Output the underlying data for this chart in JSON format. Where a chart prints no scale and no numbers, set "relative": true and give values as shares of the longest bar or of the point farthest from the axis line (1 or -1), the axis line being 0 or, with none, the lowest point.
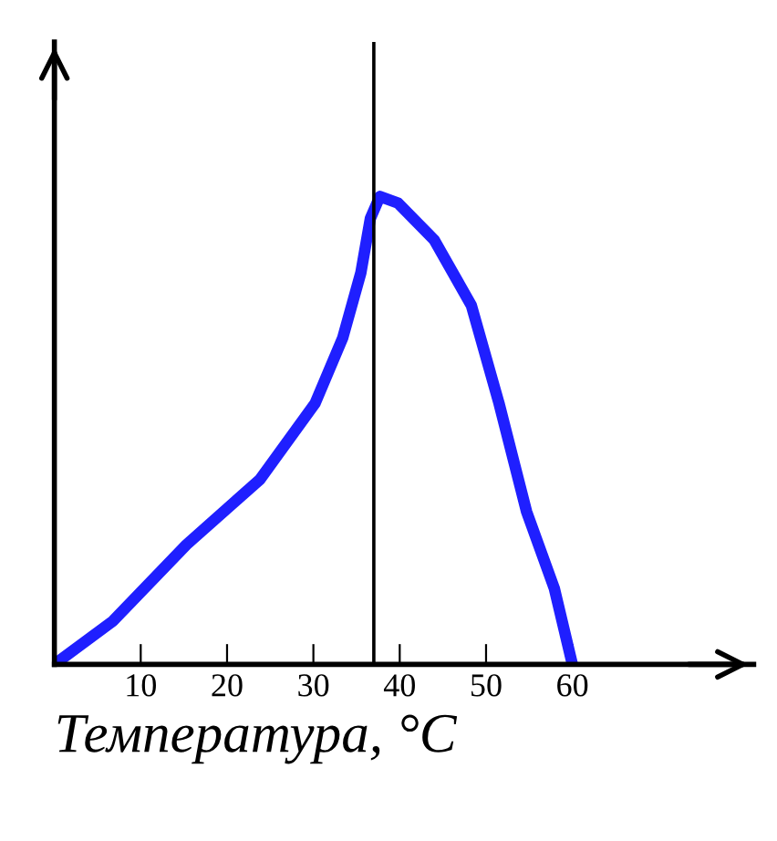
{
  "chart_data": {
    "type": "line",
    "relative": true,
    "xlabel": "Температура, °C",
    "x": [
      0,
      6.8,
      15.3,
      23.8,
      30.2,
      33.4,
      35.5,
      36.6,
      37.7,
      39.8,
      44,
      48.3,
      51.5,
      54.7,
      57.9,
      60
    ],
    "series": [
      {
        "color": "#1f1fff",
        "values": [
          0,
          0.093,
          0.256,
          0.395,
          0.558,
          0.698,
          0.837,
          0.953,
          1,
          0.986,
          0.907,
          0.767,
          0.558,
          0.326,
          0.163,
          0
        ]
      }
    ],
    "xlim": [
      0,
      81
    ],
    "xticks": [
      10,
      20,
      30,
      40,
      50,
      60
    ],
    "ref_lines": [
      {
        "axis": "x",
        "value": 37,
        "color": "#000000"
      }
    ],
    "grid": false,
    "tick_labels": "x",
    "marker": "none",
    "line_style": "solid"
  }
}
